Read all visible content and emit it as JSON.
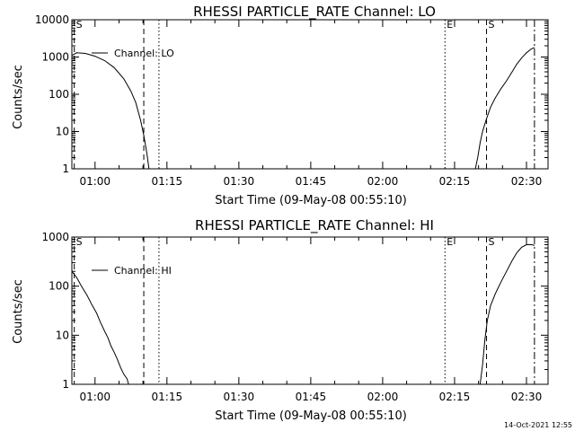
{
  "footer": {
    "timestamp": "14-Oct-2021 12:55"
  },
  "chart_data": [
    {
      "type": "line",
      "title": "RHESSI PARTICLE_RATE Channel: LO",
      "xlabel": "Start Time (09-May-08 00:55:10)",
      "ylabel": "Counts/sec",
      "yscale": "log",
      "ylim": [
        1,
        10000
      ],
      "xlim": [
        "00:55:10",
        "02:34:30"
      ],
      "x_ticks": [
        "01:00",
        "01:15",
        "01:30",
        "01:45",
        "02:00",
        "02:15",
        "02:30"
      ],
      "y_ticks": [
        {
          "value": 1,
          "label": "1"
        },
        {
          "value": 10,
          "label": "10"
        },
        {
          "value": 100,
          "label": "100"
        },
        {
          "value": 1000,
          "label": "1000"
        },
        {
          "value": 10000,
          "label": "10000"
        }
      ],
      "legend": {
        "placement": "top-left",
        "entries": [
          "Channel: LO"
        ]
      },
      "series": [
        {
          "name": "Channel: LO",
          "segments": [
            [
              [
                "00:55:10",
                1100
              ],
              [
                "00:56:10",
                1300
              ],
              [
                "00:58:00",
                1250
              ],
              [
                "01:00:00",
                1050
              ],
              [
                "01:02:00",
                800
              ],
              [
                "01:04:00",
                520
              ],
              [
                "01:06:00",
                260
              ],
              [
                "01:07:30",
                120
              ],
              [
                "01:08:30",
                60
              ],
              [
                "01:09:30",
                20
              ],
              [
                "01:10:10",
                8
              ],
              [
                "01:10:50",
                2.5
              ],
              [
                "01:11:15",
                1
              ]
            ],
            [
              [
                "02:19:20",
                1
              ],
              [
                "02:19:50",
                2
              ],
              [
                "02:20:20",
                5
              ],
              [
                "02:20:50",
                10
              ],
              [
                "02:21:40",
                22
              ],
              [
                "02:22:30",
                45
              ],
              [
                "02:23:30",
                80
              ],
              [
                "02:24:40",
                140
              ],
              [
                "02:25:50",
                230
              ],
              [
                "02:27:00",
                400
              ],
              [
                "02:28:00",
                650
              ],
              [
                "02:29:00",
                950
              ],
              [
                "02:30:00",
                1300
              ],
              [
                "02:31:00",
                1650
              ],
              [
                "02:31:40",
                1800
              ]
            ]
          ]
        }
      ],
      "markers": [
        {
          "time": "00:55:40",
          "style": "dashed",
          "label": "S"
        },
        {
          "time": "01:10:10",
          "style": "dashed",
          "label": ""
        },
        {
          "time": "01:13:20",
          "style": "dotted",
          "label": ""
        },
        {
          "time": "02:13:00",
          "style": "dotted",
          "label": "E"
        },
        {
          "time": "02:21:40",
          "style": "dashed",
          "label": "S"
        },
        {
          "time": "02:31:40",
          "style": "dashdot",
          "label": ""
        }
      ]
    },
    {
      "type": "line",
      "title": "RHESSI PARTICLE_RATE Channel: HI",
      "xlabel": "Start Time (09-May-08 00:55:10)",
      "ylabel": "Counts/sec",
      "yscale": "log",
      "ylim": [
        1,
        1000
      ],
      "xlim": [
        "00:55:10",
        "02:34:30"
      ],
      "x_ticks": [
        "01:00",
        "01:15",
        "01:30",
        "01:45",
        "02:00",
        "02:15",
        "02:30"
      ],
      "y_ticks": [
        {
          "value": 1,
          "label": "1"
        },
        {
          "value": 10,
          "label": "10"
        },
        {
          "value": 100,
          "label": "100"
        },
        {
          "value": 1000,
          "label": "1000"
        }
      ],
      "legend": {
        "placement": "top-left",
        "entries": [
          "Channel: HI"
        ]
      },
      "series": [
        {
          "name": "Channel: HI",
          "segments": [
            [
              [
                "00:55:10",
                200
              ],
              [
                "00:56:10",
                150
              ],
              [
                "00:57:10",
                100
              ],
              [
                "00:58:20",
                65
              ],
              [
                "00:59:20",
                42
              ],
              [
                "01:00:20",
                28
              ],
              [
                "01:01:10",
                18
              ],
              [
                "01:02:00",
                12
              ],
              [
                "01:02:40",
                9
              ],
              [
                "01:03:20",
                6
              ],
              [
                "01:04:00",
                4.5
              ],
              [
                "01:04:40",
                3.2
              ],
              [
                "01:05:20",
                2.2
              ],
              [
                "01:06:00",
                1.6
              ],
              [
                "01:06:40",
                1.3
              ],
              [
                "01:07:00",
                1
              ]
            ],
            [
              [
                "02:20:20",
                1
              ],
              [
                "02:20:50",
                2.5
              ],
              [
                "02:21:20",
                8
              ],
              [
                "02:21:50",
                20
              ],
              [
                "02:22:30",
                40
              ],
              [
                "02:23:30",
                70
              ],
              [
                "02:24:40",
                120
              ],
              [
                "02:25:50",
                200
              ],
              [
                "02:27:00",
                330
              ],
              [
                "02:28:00",
                480
              ],
              [
                "02:29:00",
                620
              ],
              [
                "02:30:00",
                700
              ],
              [
                "02:31:00",
                700
              ],
              [
                "02:31:40",
                680
              ]
            ]
          ]
        }
      ],
      "markers": [
        {
          "time": "00:55:40",
          "style": "dashed",
          "label": "S"
        },
        {
          "time": "01:10:10",
          "style": "dashed",
          "label": ""
        },
        {
          "time": "01:13:20",
          "style": "dotted",
          "label": ""
        },
        {
          "time": "02:13:00",
          "style": "dotted",
          "label": "E"
        },
        {
          "time": "02:21:40",
          "style": "dashed",
          "label": "S"
        },
        {
          "time": "02:31:40",
          "style": "dashdot",
          "label": ""
        }
      ]
    }
  ]
}
